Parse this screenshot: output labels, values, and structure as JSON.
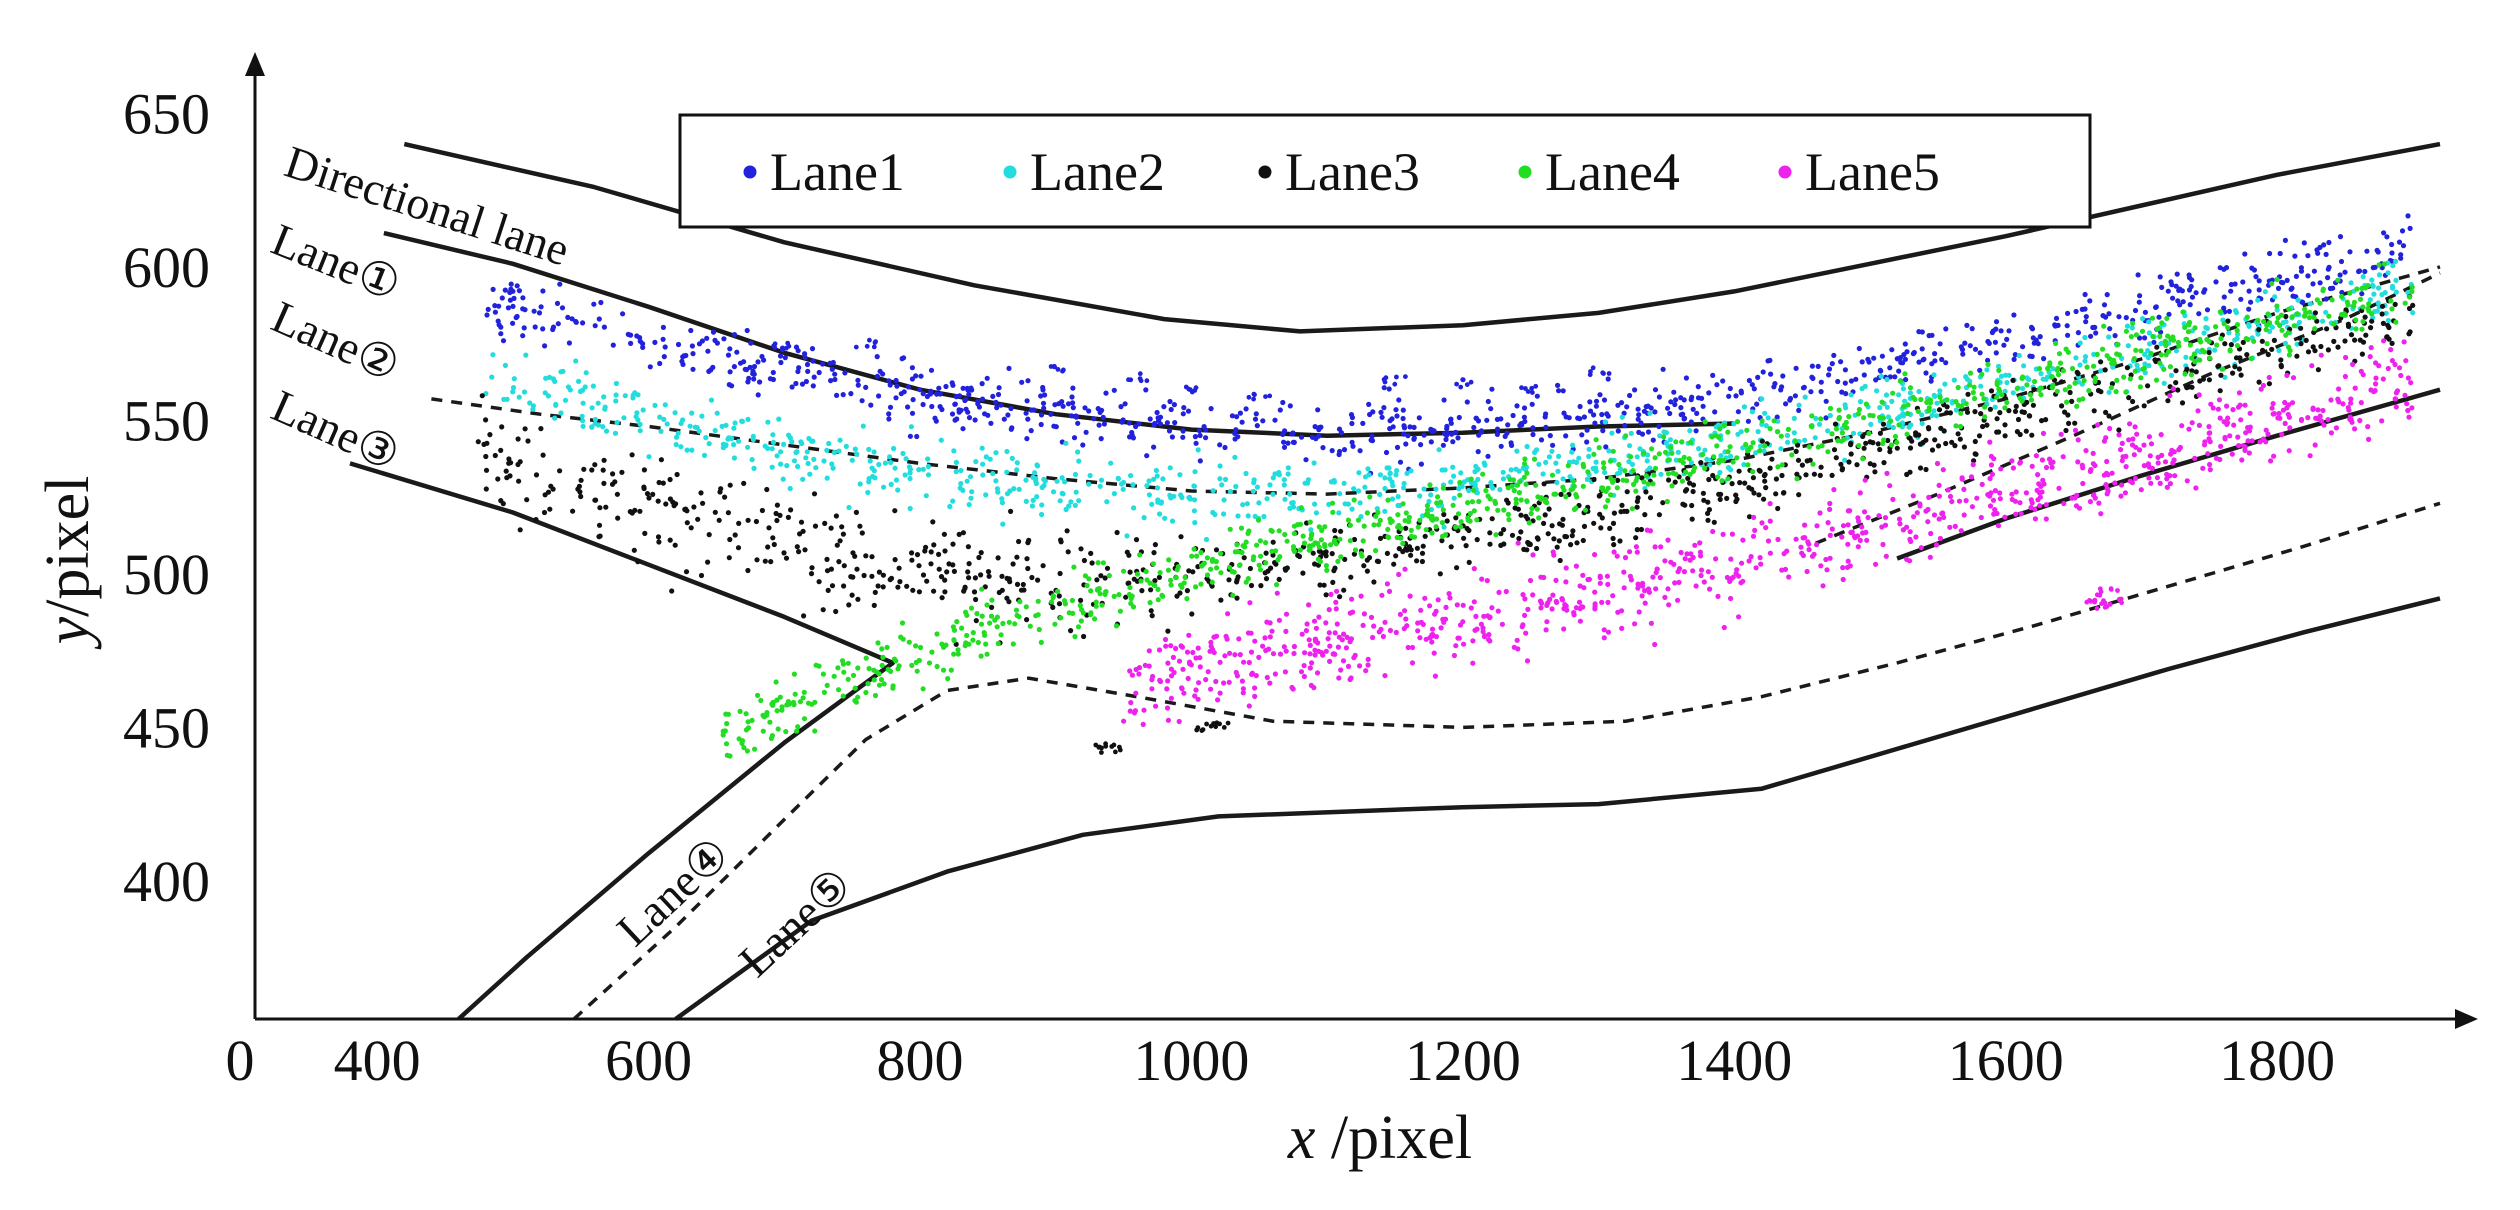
{
  "chart_data": {
    "type": "scatter",
    "title": "",
    "xlabel_var": "x",
    "xlabel_unit": " /pixel",
    "ylabel_var": "y",
    "ylabel_unit": "/pixel",
    "origin_label": "0",
    "xlim": [
      310,
      1920
    ],
    "ylim": [
      355,
      670
    ],
    "x_ticks": [
      400,
      600,
      800,
      1000,
      1200,
      1400,
      1600,
      1800
    ],
    "y_ticks": [
      400,
      450,
      500,
      550,
      600,
      650
    ],
    "legend_position": "top",
    "series": [
      {
        "name": "Lane1",
        "color": "#2222dd",
        "path_x": [
          480,
          560,
          640,
          720,
          800,
          900,
          1000,
          1100,
          1200,
          1300,
          1400,
          1500,
          1600,
          1700,
          1800,
          1900
        ],
        "path_y": [
          588,
          580,
          572,
          565,
          558,
          553,
          549,
          546,
          547,
          551,
          558,
          567,
          576,
          586,
          596,
          606
        ]
      },
      {
        "name": "Lane2",
        "color": "#22dddd",
        "path_x": [
          480,
          560,
          640,
          720,
          800,
          900,
          1000,
          1100,
          1200,
          1300,
          1400,
          1500,
          1600,
          1700,
          1800,
          1900
        ],
        "path_y": [
          565,
          555,
          546,
          539,
          533,
          528,
          526,
          526,
          529,
          535,
          543,
          552,
          562,
          572,
          583,
          594
        ]
      },
      {
        "name": "Lane3",
        "color": "#111111",
        "path_x": [
          470,
          540,
          620,
          700,
          780,
          860,
          940,
          1020,
          1100,
          1200,
          1300,
          1400,
          1500,
          1600,
          1700,
          1800,
          1900
        ],
        "path_y": [
          540,
          528,
          518,
          510,
          503,
          500,
          499,
          501,
          505,
          512,
          520,
          530,
          540,
          551,
          562,
          573,
          584
        ]
      },
      {
        "name": "Lane4",
        "color": "#22dd22",
        "path_x": [
          650,
          720,
          800,
          880,
          960,
          1040,
          1120,
          1200,
          1300,
          1400,
          1500,
          1600,
          1700,
          1800,
          1900
        ],
        "path_y": [
          445,
          460,
          474,
          486,
          497,
          506,
          514,
          521,
          530,
          540,
          550,
          560,
          571,
          582,
          594
        ]
      },
      {
        "name": "Lane5",
        "color": "#ee22ee",
        "path_x": [
          950,
          1000,
          1060,
          1120,
          1200,
          1280,
          1360,
          1440,
          1520,
          1600,
          1700,
          1800,
          1900
        ],
        "path_y": [
          462,
          468,
          474,
          479,
          485,
          492,
          500,
          509,
          518,
          527,
          538,
          550,
          562
        ]
      }
    ],
    "road_boundaries": [
      {
        "name": "upper-boundary",
        "x": [
          420,
          560,
          700,
          840,
          980,
          1080,
          1200,
          1300,
          1400,
          1500,
          1600,
          1700,
          1800,
          1920
        ],
        "y": [
          640,
          626,
          608,
          594,
          583,
          579,
          581,
          585,
          592,
          601,
          610,
          620,
          630,
          640
        ]
      },
      {
        "name": "lane1-2-divider",
        "x": [
          405,
          500,
          600,
          700,
          800,
          900,
          1000,
          1100,
          1200,
          1300,
          1400
        ],
        "y": [
          611,
          601,
          587,
          572,
          560,
          552,
          547,
          545,
          546,
          548,
          549
        ]
      },
      {
        "name": "right-lower-boundary",
        "x": [
          1520,
          1600,
          1700,
          1800,
          1920
        ],
        "y": [
          505,
          518,
          532,
          545,
          560
        ]
      },
      {
        "name": "left-lower-boundary",
        "x": [
          380,
          500,
          600,
          700,
          780,
          700,
          600,
          510,
          460
        ],
        "y": [
          536,
          520,
          503,
          486,
          471,
          445,
          409,
          375,
          355
        ]
      },
      {
        "name": "bottom-boundary",
        "x": [
          620,
          720,
          820,
          920,
          1020,
          1200,
          1300,
          1420,
          1520,
          1620,
          1720,
          1820,
          1920
        ],
        "y": [
          355,
          387,
          403,
          415,
          421,
          424,
          425,
          430,
          443,
          456,
          469,
          481,
          492
        ]
      }
    ],
    "dashed_dividers": [
      {
        "name": "lane2-3-divider",
        "x": [
          440,
          520,
          600,
          700,
          800,
          900,
          1000,
          1100,
          1200,
          1300,
          1400,
          1500,
          1600,
          1700,
          1800,
          1920
        ],
        "y": [
          557,
          552,
          548,
          542,
          536,
          531,
          527,
          526,
          528,
          531,
          537,
          546,
          557,
          570,
          585,
          600
        ]
      },
      {
        "name": "lane3-4-divider",
        "x": [
          1460,
          1550,
          1650,
          1750,
          1850,
          1920
        ],
        "y": [
          510,
          526,
          545,
          565,
          583,
          598
        ]
      },
      {
        "name": "lane4-5-divider",
        "x": [
          545,
          620,
          700,
          760,
          820,
          880,
          960,
          1060,
          1200,
          1320,
          1420,
          1520,
          1620,
          1720,
          1820,
          1920
        ],
        "y": [
          355,
          385,
          420,
          446,
          462,
          466,
          460,
          452,
          450,
          452,
          460,
          471,
          483,
          496,
          509,
          523
        ]
      }
    ],
    "annotations": [
      {
        "text": "Directional lane",
        "x": 330,
        "y": 630
      },
      {
        "text": "Lane①",
        "x": 320,
        "y": 605
      },
      {
        "text": "Lane②",
        "x": 320,
        "y": 580
      },
      {
        "text": "Lane③",
        "x": 320,
        "y": 551
      },
      {
        "text": "Lane④",
        "x": 590,
        "y": 378
      },
      {
        "text": "Lane⑤",
        "x": 680,
        "y": 368
      }
    ],
    "extra_clusters": [
      {
        "series": "Lane1",
        "x": [
          700,
          760,
          900,
          960,
          1000,
          1050,
          1150,
          1200,
          1250,
          1300
        ],
        "y": [
          574,
          575,
          567,
          564,
          560,
          558,
          563,
          562,
          560,
          566
        ]
      },
      {
        "series": "Lane5",
        "x": [
          1665,
          1670,
          1675,
          1680
        ],
        "y": [
          492,
          490,
          494,
          491
        ]
      },
      {
        "series": "Lane3",
        "x": [
          935,
          940,
          1010,
          1020
        ],
        "y": [
          444,
          443,
          450,
          451
        ]
      }
    ]
  }
}
